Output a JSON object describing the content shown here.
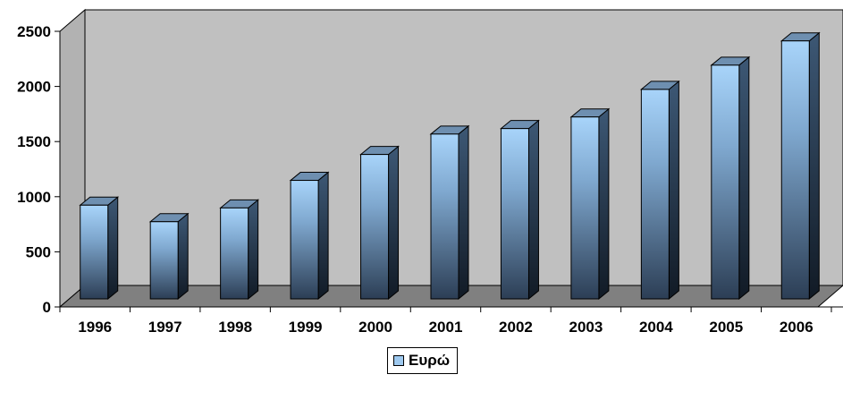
{
  "chart_data": {
    "type": "bar",
    "categories": [
      "1996",
      "1997",
      "1998",
      "1999",
      "2000",
      "2001",
      "2002",
      "2003",
      "2004",
      "2005",
      "2006"
    ],
    "series": [
      {
        "name": "Ευρώ",
        "values": [
          850,
          700,
          825,
          1075,
          1310,
          1495,
          1545,
          1650,
          1900,
          2120,
          2340
        ]
      }
    ],
    "ylim": [
      0,
      2500
    ],
    "yticks": [
      0,
      500,
      1000,
      1500,
      2000,
      2500
    ],
    "grid": false,
    "legend_position": "bottom",
    "colors": {
      "wall": "#c0c0c0",
      "floor": "#808080",
      "bar_top": "#a5d2f8",
      "bar_bottom": "#2c3c52"
    }
  }
}
